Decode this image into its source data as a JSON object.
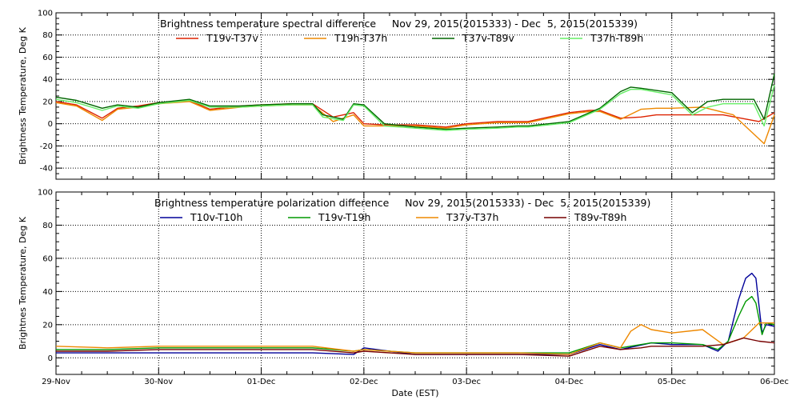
{
  "xlabel": "Date (EST)",
  "x_tick_labels": [
    "29-Nov",
    "30-Nov",
    "01-Dec",
    "02-Dec",
    "03-Dec",
    "04-Dec",
    "05-Dec",
    "06-Dec"
  ],
  "chart_data": [
    {
      "type": "line",
      "title": "Brightness temperature spectral difference     Nov 29, 2015(2015333) - Dec  5, 2015(2015339)",
      "ylabel": "Brightness Temperature, Deg K",
      "xlabel": "",
      "xlim": [
        0,
        7
      ],
      "x_unit": "days since 29-Nov 00:00 EST",
      "ylim": [
        -50,
        100
      ],
      "yticks": [
        -40,
        -20,
        0,
        20,
        40,
        60,
        80,
        100
      ],
      "grid": true,
      "legend_position": "top",
      "series": [
        {
          "name": "T19v-T37v",
          "color": "#dd2200",
          "x": [
            0,
            0.2,
            0.45,
            0.6,
            0.8,
            1.0,
            1.3,
            1.5,
            1.8,
            2.0,
            2.3,
            2.5,
            2.7,
            2.9,
            3.0,
            3.2,
            3.5,
            3.8,
            4.0,
            4.3,
            4.5,
            4.6,
            4.8,
            5.0,
            5.2,
            5.3,
            5.5,
            5.7,
            5.85,
            6.0,
            6.5,
            6.85,
            7.0
          ],
          "y": [
            20,
            17,
            5,
            14,
            16,
            19,
            21,
            13,
            16,
            17,
            18,
            18,
            6,
            10,
            0,
            -1,
            -1,
            -3,
            0,
            2,
            2,
            2,
            6,
            10,
            12,
            12,
            5,
            6,
            8,
            8,
            8,
            2,
            10
          ]
        },
        {
          "name": "T19h-T37h",
          "color": "#ee8800",
          "x": [
            0,
            0.2,
            0.45,
            0.6,
            0.8,
            1.0,
            1.3,
            1.5,
            1.8,
            2.0,
            2.3,
            2.5,
            2.7,
            2.9,
            3.0,
            3.2,
            3.5,
            3.8,
            4.0,
            4.3,
            4.5,
            4.6,
            4.8,
            5.0,
            5.2,
            5.3,
            5.5,
            5.7,
            5.85,
            6.0,
            6.3,
            6.6,
            6.75,
            6.9,
            7.0
          ],
          "y": [
            19,
            16,
            3,
            13,
            15,
            18,
            20,
            12,
            15,
            16,
            17,
            17,
            2,
            8,
            -2,
            -2,
            -2,
            -4,
            -1,
            1,
            1,
            1,
            5,
            9,
            11,
            11,
            4,
            13,
            14,
            14,
            15,
            8,
            -5,
            -18,
            8
          ]
        },
        {
          "name": "T37v-T89v",
          "color": "#006600",
          "x": [
            0,
            0.2,
            0.45,
            0.6,
            0.8,
            1.0,
            1.3,
            1.5,
            1.8,
            2.0,
            2.3,
            2.5,
            2.6,
            2.8,
            2.9,
            3.0,
            3.2,
            3.5,
            3.8,
            4.0,
            4.3,
            4.5,
            4.6,
            4.8,
            5.0,
            5.2,
            5.3,
            5.5,
            5.6,
            5.7,
            6.0,
            6.2,
            6.35,
            6.5,
            6.8,
            6.9,
            7.0
          ],
          "y": [
            24,
            21,
            14,
            17,
            15,
            19,
            22,
            16,
            16,
            17,
            18,
            18,
            8,
            4,
            18,
            17,
            0,
            -3,
            -5,
            -4,
            -3,
            -2,
            -2,
            0,
            2,
            10,
            14,
            29,
            33,
            32,
            28,
            10,
            20,
            22,
            22,
            4,
            45
          ]
        },
        {
          "name": "T37h-T89h",
          "color": "#66ee66",
          "x": [
            0,
            0.2,
            0.45,
            0.6,
            0.8,
            1.0,
            1.3,
            1.5,
            1.8,
            2.0,
            2.3,
            2.5,
            2.6,
            2.8,
            2.9,
            3.0,
            3.2,
            3.5,
            3.8,
            4.0,
            4.3,
            4.5,
            4.6,
            4.8,
            5.0,
            5.2,
            5.3,
            5.5,
            5.6,
            5.7,
            6.0,
            6.2,
            6.35,
            6.5,
            6.8,
            6.9,
            7.0
          ],
          "y": [
            22,
            19,
            12,
            16,
            14,
            18,
            21,
            15,
            15,
            16,
            17,
            17,
            6,
            3,
            17,
            16,
            -2,
            -4,
            -6,
            -5,
            -4,
            -3,
            -3,
            -1,
            1,
            9,
            13,
            27,
            31,
            31,
            26,
            8,
            15,
            18,
            18,
            -2,
            35
          ]
        }
      ]
    },
    {
      "type": "line",
      "title": "Brightness temperature polarization difference     Nov 29, 2015(2015333) - Dec  5, 2015(2015339)",
      "ylabel": "Brightnes Temperature, Deg K",
      "xlabel": "Date (EST)",
      "xlim": [
        0,
        7
      ],
      "x_unit": "days since 29-Nov 00:00 EST",
      "ylim": [
        -10,
        100
      ],
      "yticks": [
        0,
        20,
        40,
        60,
        80,
        100
      ],
      "grid": true,
      "legend_position": "top",
      "series": [
        {
          "name": "T10v-T10h",
          "color": "#000099",
          "x": [
            0,
            0.5,
            1.0,
            1.5,
            2.0,
            2.5,
            2.9,
            3.0,
            3.5,
            4.0,
            4.5,
            5.0,
            5.3,
            5.5,
            5.8,
            6.0,
            6.3,
            6.45,
            6.55,
            6.65,
            6.72,
            6.78,
            6.82,
            6.88,
            6.92,
            7.0
          ],
          "y": [
            3,
            3,
            3,
            3,
            3,
            3,
            2,
            6,
            2,
            2,
            2,
            2,
            8,
            5,
            9,
            8,
            8,
            4,
            10,
            35,
            48,
            51,
            48,
            15,
            20,
            19
          ]
        },
        {
          "name": "T19v-T19h",
          "color": "#009900",
          "x": [
            0,
            0.5,
            1.0,
            1.5,
            2.0,
            2.5,
            2.9,
            3.0,
            3.5,
            4.0,
            4.5,
            5.0,
            5.3,
            5.5,
            5.8,
            6.0,
            6.3,
            6.45,
            6.55,
            6.65,
            6.72,
            6.78,
            6.82,
            6.88,
            6.92,
            7.0
          ],
          "y": [
            5,
            5,
            6,
            6,
            6,
            6,
            4,
            5,
            3,
            3,
            3,
            3,
            9,
            6,
            9,
            9,
            8,
            5,
            10,
            25,
            34,
            37,
            33,
            14,
            21,
            20
          ]
        },
        {
          "name": "T37v-T37h",
          "color": "#ee8800",
          "x": [
            0,
            0.5,
            1.0,
            1.5,
            2.0,
            2.5,
            2.9,
            3.0,
            3.5,
            4.0,
            4.5,
            5.0,
            5.3,
            5.5,
            5.6,
            5.7,
            5.8,
            6.0,
            6.3,
            6.5,
            6.7,
            6.85,
            7.0
          ],
          "y": [
            7,
            6,
            7,
            7,
            7,
            7,
            4,
            5,
            3,
            3,
            3,
            2,
            9,
            6,
            16,
            20,
            17,
            15,
            17,
            8,
            12,
            21,
            21
          ]
        },
        {
          "name": "T89v-T89h",
          "color": "#770000",
          "x": [
            0,
            0.5,
            1.0,
            1.5,
            2.0,
            2.5,
            2.9,
            3.0,
            3.5,
            4.0,
            4.5,
            5.0,
            5.3,
            5.5,
            5.7,
            5.8,
            6.0,
            6.3,
            6.5,
            6.7,
            6.85,
            7.0
          ],
          "y": [
            4,
            4,
            5,
            5,
            5,
            5,
            3,
            4,
            2,
            2,
            2,
            1,
            7,
            5,
            6,
            7,
            7,
            7,
            8,
            12,
            10,
            9
          ]
        }
      ]
    }
  ]
}
